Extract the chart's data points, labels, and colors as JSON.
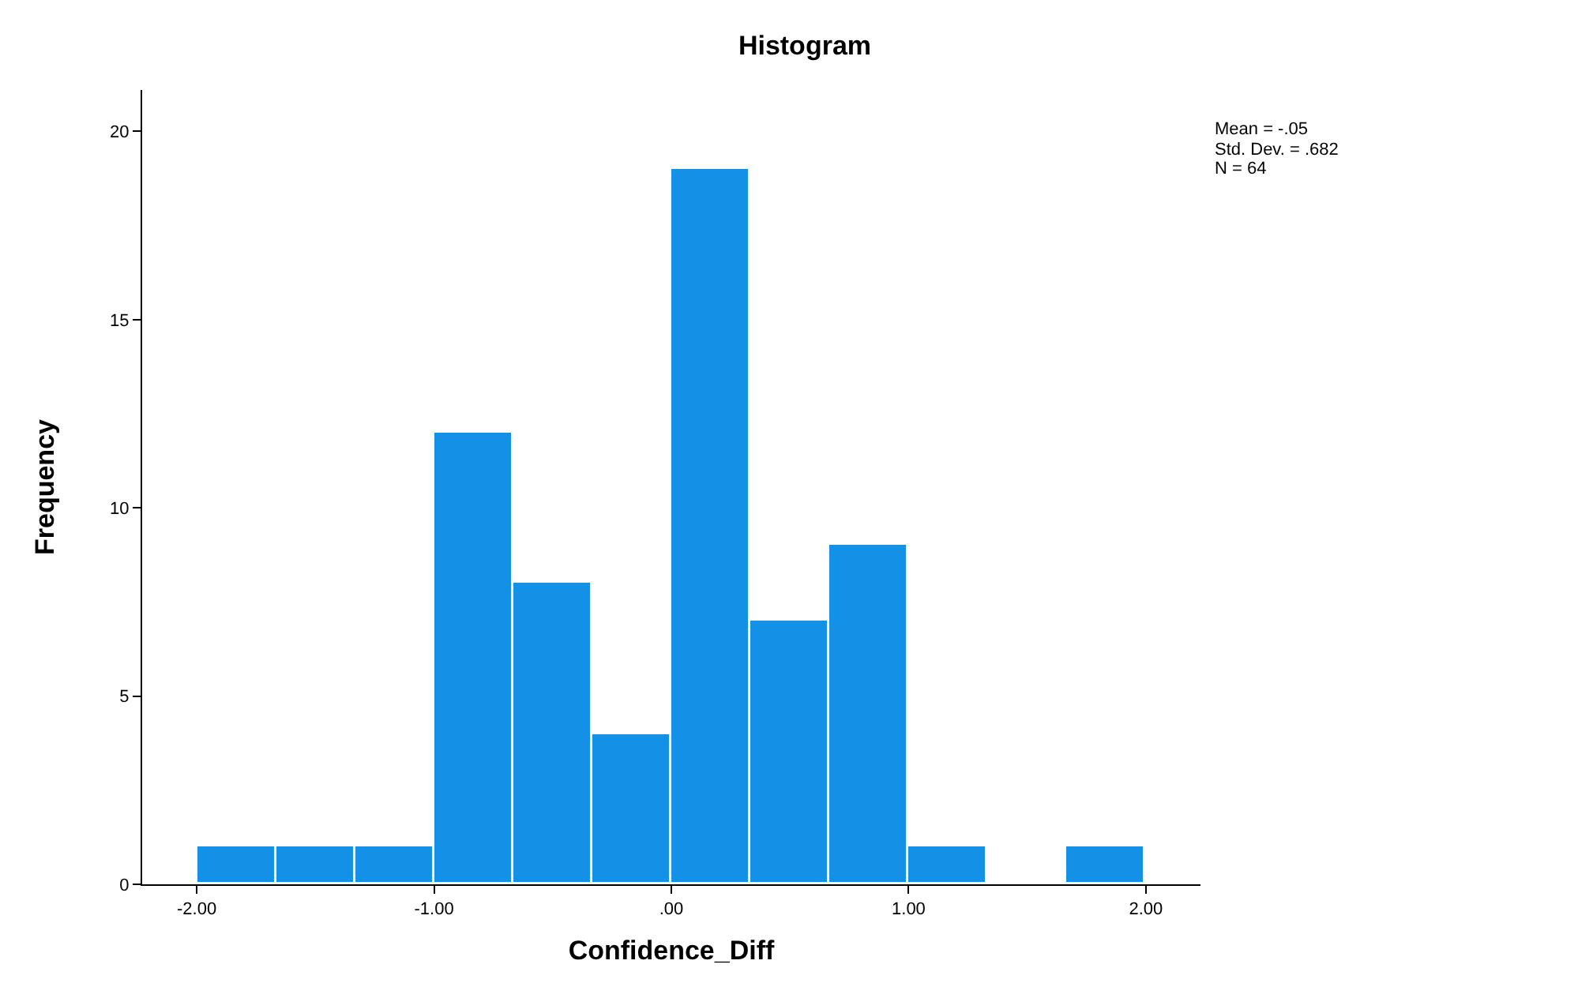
{
  "chart_data": {
    "type": "histogram",
    "title": "Histogram",
    "xlabel": "Confidence_Diff",
    "ylabel": "Frequency",
    "bins": [
      -2,
      -1.667,
      -1.333,
      -1,
      -0.667,
      -0.333,
      0,
      0.333,
      0.667,
      1,
      1.333,
      1.667,
      2
    ],
    "values": [
      1,
      1,
      1,
      12,
      8,
      4,
      19,
      7,
      9,
      1,
      0,
      1
    ],
    "color": "#1490e6",
    "xlim": [
      -2.23,
      2.23
    ],
    "xticks": [
      {
        "value": -2,
        "label": "-2.00"
      },
      {
        "value": -1,
        "label": "-1.00"
      },
      {
        "value": 0,
        "label": ".00"
      },
      {
        "value": 1,
        "label": "1.00"
      },
      {
        "value": 2,
        "label": "2.00"
      }
    ],
    "ylim": [
      0,
      21.1
    ],
    "yticks": [
      0,
      5,
      10,
      15,
      20
    ],
    "grid": false,
    "legend": false,
    "annotations": [
      "Mean = -.05",
      "Std. Dev. = .682",
      "N = 64"
    ]
  }
}
